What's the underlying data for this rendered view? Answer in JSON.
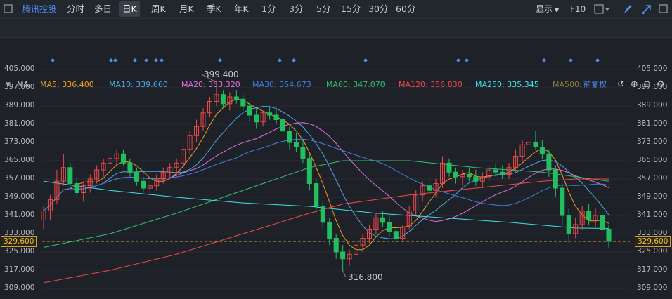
{
  "toolbar": {
    "app_name": "腾讯控股",
    "periods": [
      "分时",
      "多日",
      "日K",
      "周K",
      "月K",
      "季K",
      "年K",
      "1分",
      "3分",
      "5分",
      "15分",
      "30分",
      "60分"
    ],
    "selected_period": "日K",
    "display_label": "显示",
    "f10_label": "F10"
  },
  "drawing_tools": {
    "text_tool_label": "Aa"
  },
  "indicator_bar": {
    "name": "MA",
    "items": [
      {
        "label": "MA5: 336.400",
        "color": "#f0a020"
      },
      {
        "label": "MA10: 339.660",
        "color": "#4fa8e8"
      },
      {
        "label": "MA20: 353.320",
        "color": "#e070e0"
      },
      {
        "label": "MA30: 354.673",
        "color": "#3f7fe0"
      },
      {
        "label": "MA60: 347.070",
        "color": "#30c070"
      },
      {
        "label": "MA120: 356.830",
        "color": "#f04848"
      },
      {
        "label": "MA250: 335.345",
        "color": "#40e0e8"
      },
      {
        "label": "MA500:",
        "color": "#8a7a40"
      }
    ],
    "adjust_label": "前复权"
  },
  "chart_data": {
    "type": "candlestick",
    "y_ticks": [
      "405.000",
      "397.000",
      "389.000",
      "381.000",
      "373.000",
      "365.000",
      "357.000",
      "349.000",
      "341.000",
      "333.000",
      "325.000",
      "317.000",
      "309.000"
    ],
    "current_price": "329.600",
    "high_annotation": "399.400",
    "low_annotation": "316.800",
    "ylim": [
      309,
      405
    ],
    "candles": [
      [
        339,
        345,
        335,
        343
      ],
      [
        343,
        350,
        339,
        348
      ],
      [
        348,
        361,
        346,
        356
      ],
      [
        356,
        368,
        354,
        362
      ],
      [
        362,
        364,
        353,
        355
      ],
      [
        355,
        358,
        349,
        351
      ],
      [
        351,
        356,
        347,
        354
      ],
      [
        354,
        359,
        351,
        357
      ],
      [
        357,
        363,
        355,
        361
      ],
      [
        361,
        366,
        358,
        364
      ],
      [
        364,
        369,
        361,
        366
      ],
      [
        366,
        370,
        363,
        368
      ],
      [
        368,
        370,
        363,
        364
      ],
      [
        364,
        366,
        358,
        360
      ],
      [
        360,
        362,
        354,
        356
      ],
      [
        356,
        358,
        351,
        353
      ],
      [
        353,
        356,
        350,
        354
      ],
      [
        354,
        359,
        352,
        357
      ],
      [
        357,
        362,
        355,
        360
      ],
      [
        360,
        364,
        357,
        362
      ],
      [
        362,
        366,
        358,
        364
      ],
      [
        364,
        372,
        362,
        370
      ],
      [
        370,
        378,
        368,
        376
      ],
      [
        376,
        383,
        373,
        380
      ],
      [
        380,
        388,
        378,
        386
      ],
      [
        386,
        393,
        384,
        391
      ],
      [
        391,
        399.4,
        389,
        394
      ],
      [
        394,
        396,
        388,
        390
      ],
      [
        390,
        395,
        387,
        393
      ],
      [
        393,
        396,
        390,
        392
      ],
      [
        392,
        394,
        387,
        389
      ],
      [
        389,
        391,
        382,
        385
      ],
      [
        385,
        388,
        379,
        382
      ],
      [
        382,
        387,
        380,
        386
      ],
      [
        386,
        389,
        383,
        385
      ],
      [
        385,
        388,
        381,
        383
      ],
      [
        383,
        385,
        375,
        378
      ],
      [
        378,
        380,
        370,
        373
      ],
      [
        373,
        377,
        369,
        371
      ],
      [
        371,
        374,
        364,
        366
      ],
      [
        366,
        368,
        352,
        355
      ],
      [
        355,
        357,
        342,
        345
      ],
      [
        345,
        347,
        335,
        338
      ],
      [
        338,
        340,
        328,
        331
      ],
      [
        331,
        333,
        322,
        325
      ],
      [
        325,
        328,
        316.8,
        322
      ],
      [
        322,
        326,
        319,
        324
      ],
      [
        324,
        330,
        322,
        328
      ],
      [
        328,
        333,
        325,
        331
      ],
      [
        331,
        337,
        329,
        335
      ],
      [
        335,
        342,
        333,
        340
      ],
      [
        340,
        343,
        336,
        338
      ],
      [
        338,
        341,
        332,
        334
      ],
      [
        334,
        336,
        329,
        331
      ],
      [
        331,
        337,
        330,
        336
      ],
      [
        336,
        345,
        335,
        343
      ],
      [
        343,
        352,
        341,
        350
      ],
      [
        350,
        356,
        347,
        354
      ],
      [
        354,
        357,
        350,
        352
      ],
      [
        352,
        357,
        349,
        355
      ],
      [
        355,
        367,
        353,
        364
      ],
      [
        364,
        366,
        358,
        360
      ],
      [
        360,
        362,
        355,
        358
      ],
      [
        358,
        361,
        354,
        359
      ],
      [
        359,
        362,
        356,
        358
      ],
      [
        358,
        361,
        354,
        356
      ],
      [
        356,
        360,
        353,
        358
      ],
      [
        358,
        363,
        356,
        361
      ],
      [
        361,
        364,
        358,
        360
      ],
      [
        360,
        363,
        357,
        359
      ],
      [
        359,
        364,
        357,
        362
      ],
      [
        362,
        370,
        360,
        367
      ],
      [
        367,
        374,
        365,
        372
      ],
      [
        372,
        377,
        369,
        373
      ],
      [
        373,
        378,
        370,
        371
      ],
      [
        371,
        374,
        366,
        368
      ],
      [
        368,
        370,
        358,
        361
      ],
      [
        361,
        363,
        349,
        353
      ],
      [
        353,
        355,
        337,
        341
      ],
      [
        341,
        344,
        329,
        333
      ],
      [
        333,
        340,
        331,
        337
      ],
      [
        337,
        345,
        335,
        343
      ],
      [
        343,
        346,
        337,
        339
      ],
      [
        339,
        344,
        336,
        341
      ],
      [
        341,
        343,
        333,
        335
      ],
      [
        335,
        337,
        327,
        329.6
      ]
    ]
  }
}
